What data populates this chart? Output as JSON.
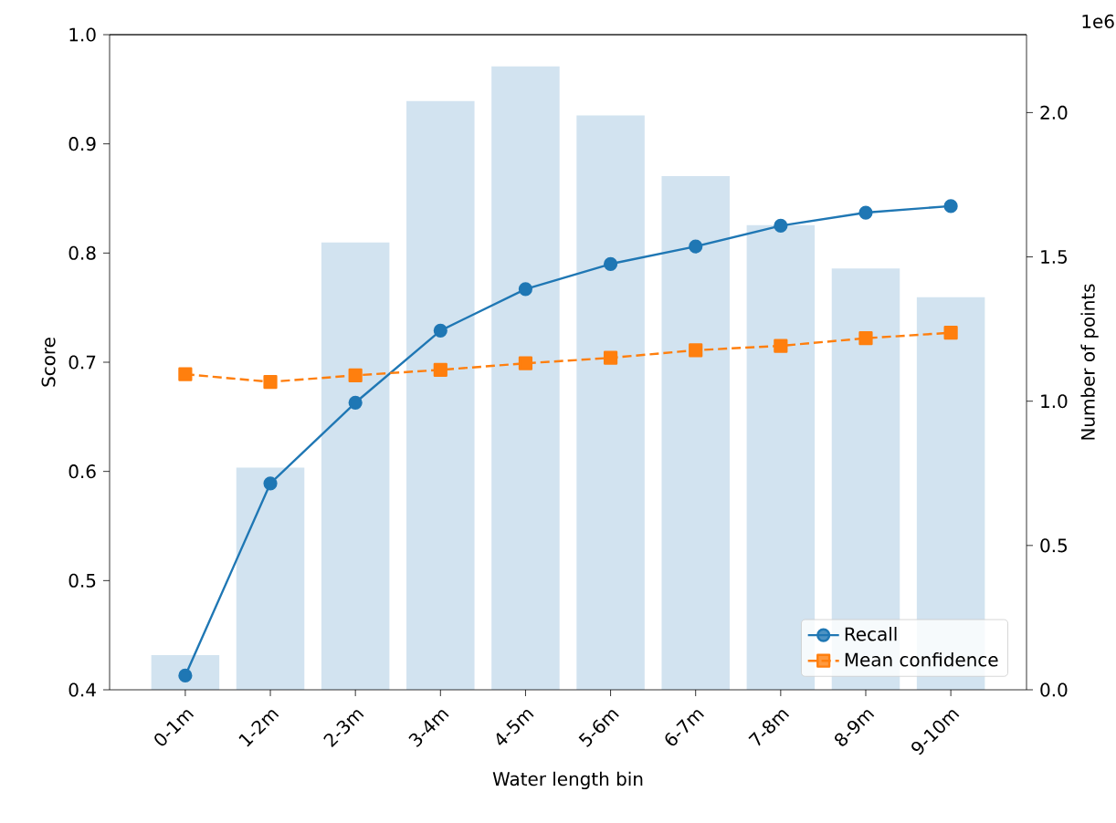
{
  "chart_data": {
    "type": "line",
    "xlabel": "Water length bin",
    "ylabel": "Score",
    "y2label": "Number of points",
    "categories": [
      "0-1m",
      "1-2m",
      "2-3m",
      "3-4m",
      "4-5m",
      "5-6m",
      "6-7m",
      "7-8m",
      "8-9m",
      "9-10m"
    ],
    "series": [
      {
        "type": "bar",
        "axis": "y2",
        "color": "#d2e3f0",
        "values": [
          0.12,
          0.77,
          1.55,
          2.04,
          2.16,
          1.99,
          1.78,
          1.61,
          1.46,
          1.36
        ]
      },
      {
        "name": "Recall",
        "color": "#1f77b4",
        "marker": "circle",
        "line_style": "solid",
        "values": [
          0.413,
          0.589,
          0.663,
          0.729,
          0.767,
          0.79,
          0.806,
          0.825,
          0.837,
          0.843
        ]
      },
      {
        "name": "Mean confidence",
        "color": "#ff7f0e",
        "marker": "square",
        "line_style": "dashed",
        "values": [
          0.689,
          0.682,
          0.688,
          0.693,
          0.699,
          0.704,
          0.711,
          0.715,
          0.722,
          0.727
        ]
      }
    ],
    "ylim": [
      0.4,
      1.0
    ],
    "yticks": [
      {
        "value": 0.4,
        "label": "0.4"
      },
      {
        "value": 0.5,
        "label": "0.5"
      },
      {
        "value": 0.6,
        "label": "0.6"
      },
      {
        "value": 0.7,
        "label": "0.7"
      },
      {
        "value": 0.8,
        "label": "0.8"
      },
      {
        "value": 0.9,
        "label": "0.9"
      },
      {
        "value": 1.0,
        "label": "1.0"
      }
    ],
    "y2lim": [
      0,
      2.27
    ],
    "y2ticks": [
      {
        "value": 0,
        "label": "0.0"
      },
      {
        "value": 0.5,
        "label": "0.5"
      },
      {
        "value": 1.0,
        "label": "1.0"
      },
      {
        "value": 1.5,
        "label": "1.5"
      },
      {
        "value": 2.0,
        "label": "2.0"
      }
    ],
    "annotations": [
      "1e6"
    ],
    "legend": "bottom right",
    "grid": false
  }
}
